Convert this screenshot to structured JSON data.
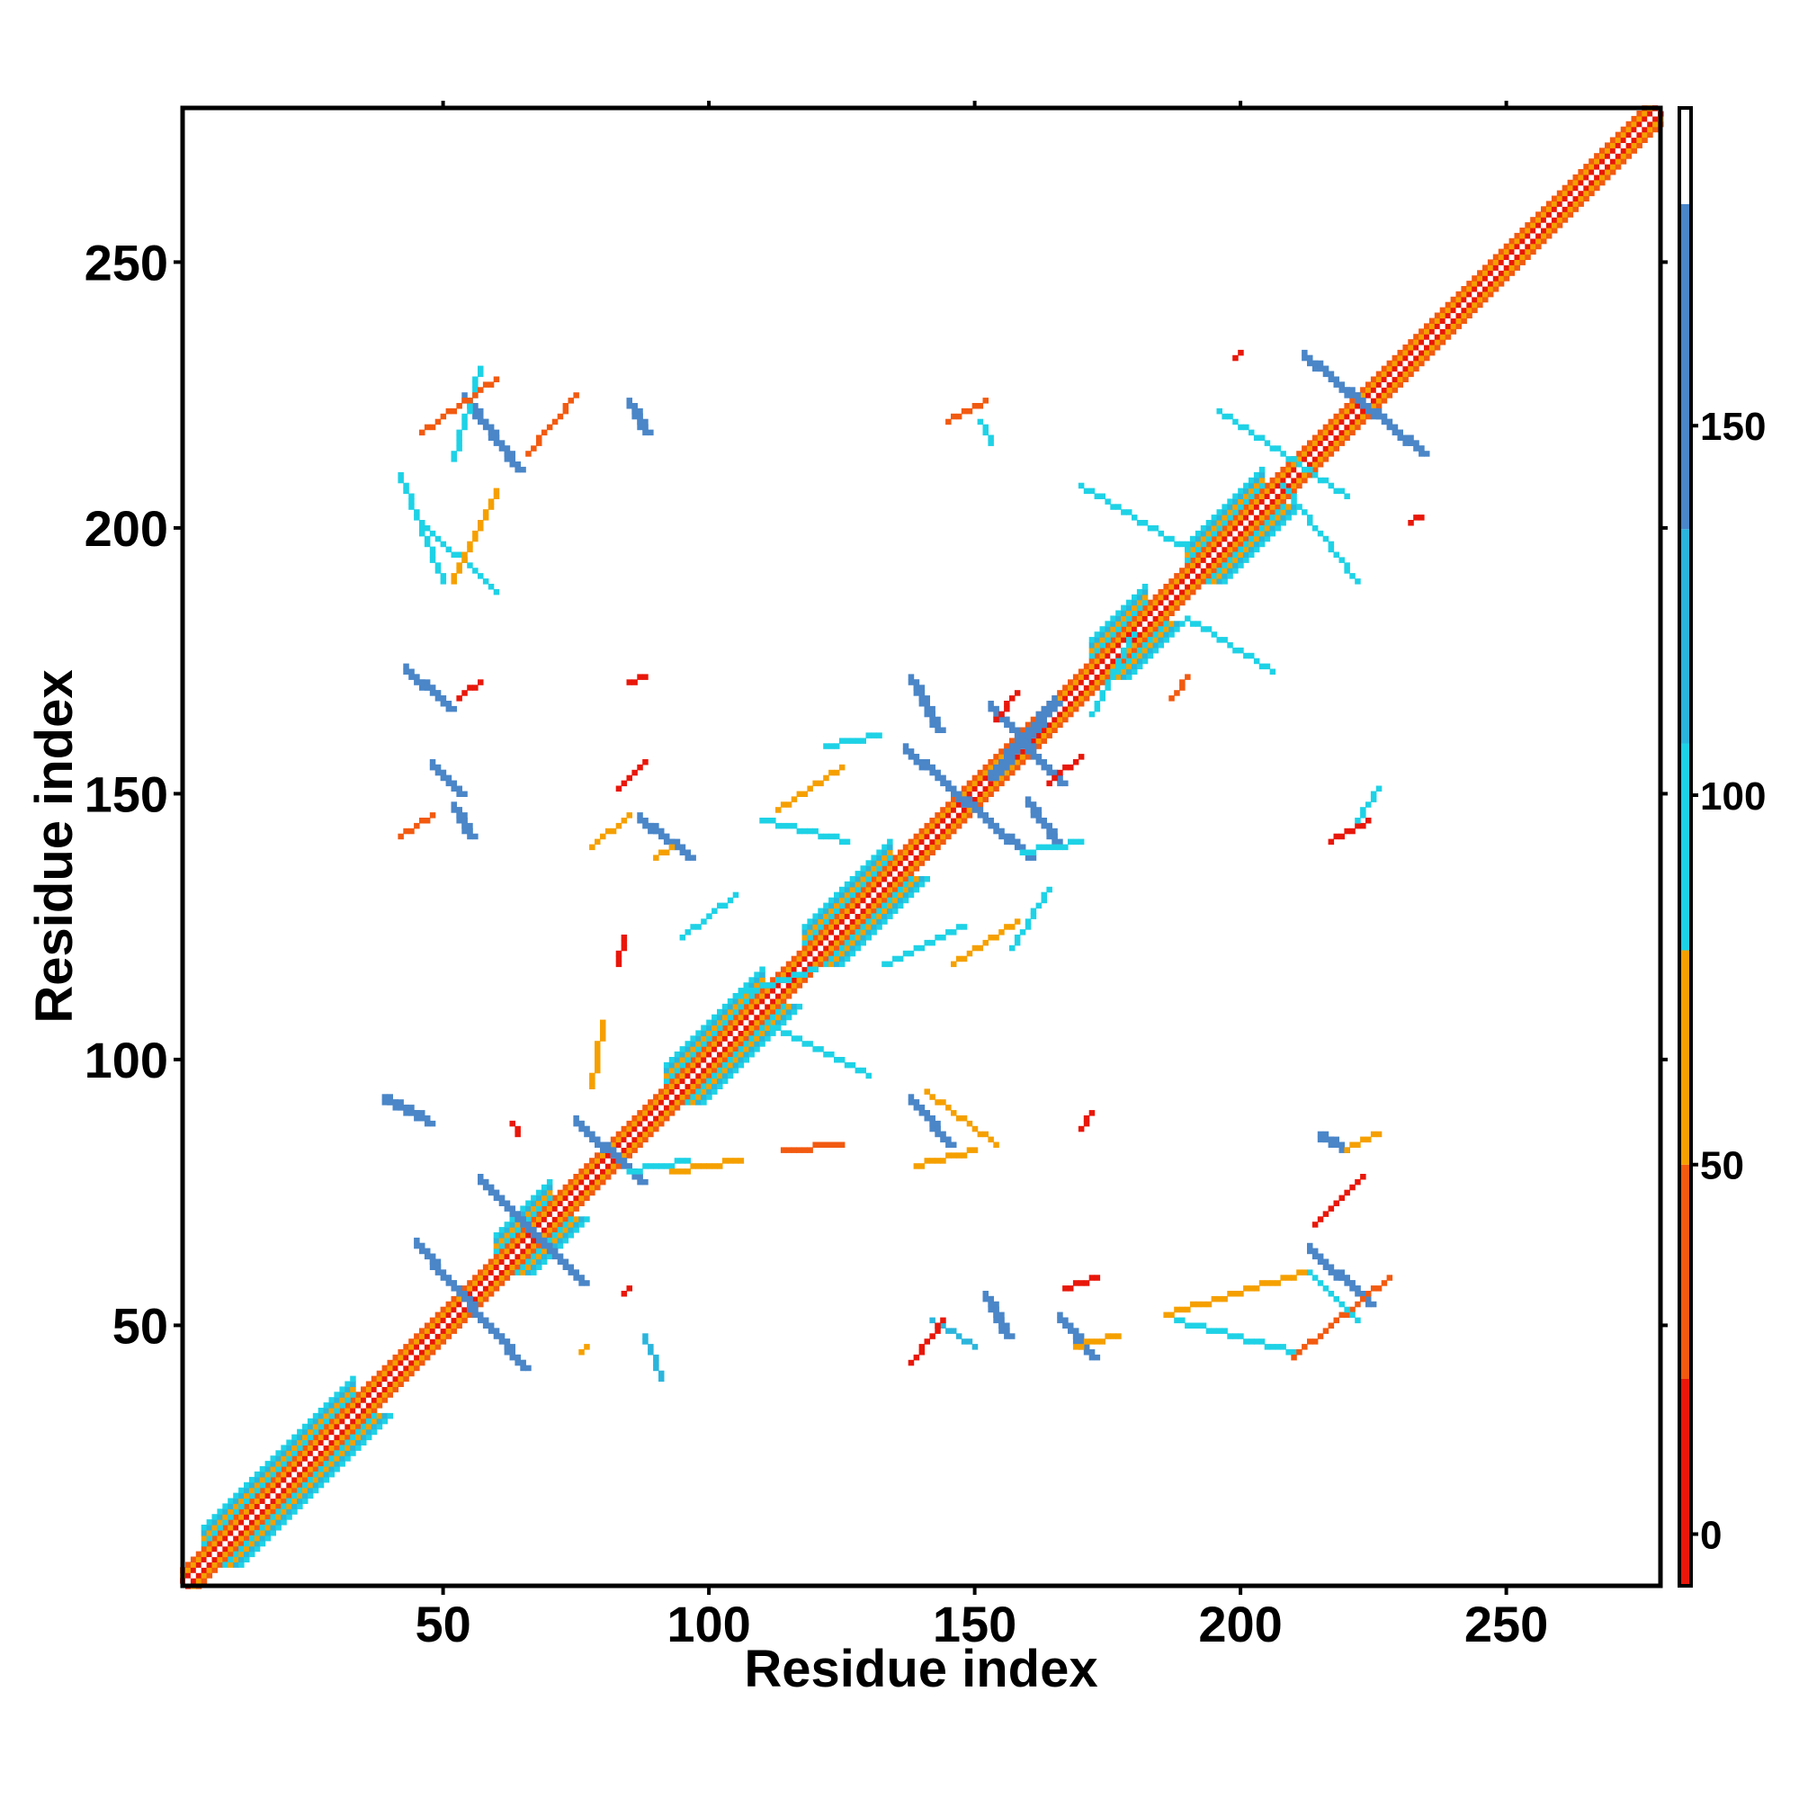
{
  "chart_data": {
    "type": "heatmap",
    "title": "",
    "xlabel": "Residue index",
    "ylabel": "Residue index",
    "xlim": [
      1,
      279
    ],
    "ylim": [
      1,
      279
    ],
    "x_ticks": [
      50,
      100,
      150,
      200,
      250
    ],
    "y_ticks": [
      50,
      100,
      150,
      200,
      250
    ],
    "colorbar": {
      "ticks": [
        0,
        50,
        100,
        150
      ],
      "range": [
        -7,
        193
      ],
      "bands": [
        {
          "from": -7,
          "to": 21,
          "color": "#e8170a"
        },
        {
          "from": 21,
          "to": 50,
          "color": "#f25a10"
        },
        {
          "from": 50,
          "to": 79,
          "color": "#f5a000"
        },
        {
          "from": 79,
          "to": 107,
          "color": "#1ed2e6"
        },
        {
          "from": 107,
          "to": 136,
          "color": "#2bb5dc"
        },
        {
          "from": 136,
          "to": 180,
          "color": "#4a86c8"
        },
        {
          "from": 180,
          "to": 193,
          "color": "#ffffff"
        }
      ]
    },
    "colors": {
      "red": "#e8170a",
      "orange_red": "#f25a10",
      "orange": "#f5a000",
      "cyan": "#1ed2e6",
      "sky": "#2bb5dc",
      "steel_blue": "#4a86c8"
    },
    "diagonal": {
      "from": 1,
      "to": 279
    },
    "helices": [
      [
        5,
        33
      ],
      [
        60,
        70
      ],
      [
        92,
        110
      ],
      [
        118,
        134
      ],
      [
        172,
        182
      ],
      [
        190,
        204
      ]
    ],
    "contact_segments": [
      {
        "x": [
          45,
          65
        ],
        "y": [
          65,
          42
        ],
        "color": "steel_blue"
      },
      {
        "x": [
          57,
          76
        ],
        "y": [
          77,
          58
        ],
        "color": "steel_blue"
      },
      {
        "x": [
          75,
          87
        ],
        "y": [
          88,
          77
        ],
        "color": "steel_blue"
      },
      {
        "x": [
          138,
          145
        ],
        "y": [
          92,
          84
        ],
        "color": "steel_blue"
      },
      {
        "x": [
          137,
          160
        ],
        "y": [
          158,
          138
        ],
        "color": "steel_blue"
      },
      {
        "x": [
          153,
          166
        ],
        "y": [
          166,
          152
        ],
        "color": "steel_blue"
      },
      {
        "x": [
          212,
          234
        ],
        "y": [
          232,
          214
        ],
        "color": "steel_blue"
      },
      {
        "x": [
          213,
          224
        ],
        "y": [
          64,
          54
        ],
        "color": "steel_blue"
      },
      {
        "x": [
          166,
          172
        ],
        "y": [
          51,
          44
        ],
        "color": "steel_blue"
      },
      {
        "x": [
          142,
          150
        ],
        "y": [
          51,
          46
        ],
        "color": "sky"
      },
      {
        "x": [
          87,
          96
        ],
        "y": [
          145,
          138
        ],
        "color": "steel_blue"
      },
      {
        "x": [
          54,
          64
        ],
        "y": [
          224,
          211
        ],
        "color": "steel_blue"
      },
      {
        "x": [
          43,
          51
        ],
        "y": [
          173,
          166
        ],
        "color": "steel_blue"
      },
      {
        "x": [
          39,
          47
        ],
        "y": [
          92,
          88
        ],
        "color": "steel_blue"
      },
      {
        "x": [
          88,
          91
        ],
        "y": [
          48,
          40
        ],
        "color": "sky"
      },
      {
        "x": [
          152,
          156
        ],
        "y": [
          55,
          48
        ],
        "color": "steel_blue"
      },
      {
        "x": [
          48,
          53
        ],
        "y": [
          155,
          150
        ],
        "color": "steel_blue"
      },
      {
        "x": [
          52,
          55
        ],
        "y": [
          147,
          142
        ],
        "color": "steel_blue"
      },
      {
        "x": [
          215,
          219
        ],
        "y": [
          85,
          83
        ],
        "color": "steel_blue"
      },
      {
        "x": [
          153,
          165
        ],
        "y": [
          153,
          167
        ],
        "color": "steel_blue"
      },
      {
        "x": [
          138,
          143
        ],
        "y": [
          171,
          162
        ],
        "color": "steel_blue"
      },
      {
        "x": [
          85,
          88
        ],
        "y": [
          223,
          218
        ],
        "color": "steel_blue"
      },
      {
        "x": [
          160,
          165
        ],
        "y": [
          148,
          141
        ],
        "color": "steel_blue"
      },
      {
        "x": [
          46,
          60
        ],
        "y": [
          201,
          188
        ],
        "color": "cyan"
      },
      {
        "x": [
          42,
          50
        ],
        "y": [
          210,
          190
        ],
        "color": "cyan"
      },
      {
        "x": [
          57,
          52
        ],
        "y": [
          230,
          213
        ],
        "color": "cyan"
      },
      {
        "x": [
          66,
          75
        ],
        "y": [
          214,
          225
        ],
        "color": "orange_red"
      },
      {
        "x": [
          46,
          60
        ],
        "y": [
          218,
          228
        ],
        "color": "orange_red"
      },
      {
        "x": [
          52,
          60
        ],
        "y": [
          190,
          207
        ],
        "color": "orange"
      },
      {
        "x": [
          42,
          48
        ],
        "y": [
          142,
          146
        ],
        "color": "orange_red"
      },
      {
        "x": [
          53,
          57
        ],
        "y": [
          168,
          171
        ],
        "color": "red"
      },
      {
        "x": [
          78,
          85
        ],
        "y": [
          140,
          146
        ],
        "color": "orange"
      },
      {
        "x": [
          90,
          93
        ],
        "y": [
          138,
          140
        ],
        "color": "orange"
      },
      {
        "x": [
          83,
          88
        ],
        "y": [
          151,
          156
        ],
        "color": "red"
      },
      {
        "x": [
          85,
          88
        ],
        "y": [
          171,
          172
        ],
        "color": "red"
      },
      {
        "x": [
          83,
          84
        ],
        "y": [
          118,
          123
        ],
        "color": "red"
      },
      {
        "x": [
          78,
          80
        ],
        "y": [
          95,
          107
        ],
        "color": "orange"
      },
      {
        "x": [
          85,
          96
        ],
        "y": [
          79,
          81
        ],
        "color": "cyan"
      },
      {
        "x": [
          93,
          106
        ],
        "y": [
          79,
          81
        ],
        "color": "orange"
      },
      {
        "x": [
          95,
          105
        ],
        "y": [
          123,
          131
        ],
        "color": "cyan"
      },
      {
        "x": [
          105,
          120
        ],
        "y": [
          112,
          117
        ],
        "color": "cyan"
      },
      {
        "x": [
          111,
          130
        ],
        "y": [
          107,
          97
        ],
        "color": "cyan"
      },
      {
        "x": [
          114,
          125
        ],
        "y": [
          83,
          84
        ],
        "color": "orange_red"
      },
      {
        "x": [
          113,
          125
        ],
        "y": [
          147,
          155
        ],
        "color": "orange"
      },
      {
        "x": [
          110,
          126
        ],
        "y": [
          145,
          141
        ],
        "color": "cyan"
      },
      {
        "x": [
          122,
          132
        ],
        "y": [
          159,
          161
        ],
        "color": "cyan"
      },
      {
        "x": [
          133,
          148
        ],
        "y": [
          118,
          125
        ],
        "color": "cyan"
      },
      {
        "x": [
          146,
          158
        ],
        "y": [
          118,
          126
        ],
        "color": "orange"
      },
      {
        "x": [
          157,
          164
        ],
        "y": [
          121,
          132
        ],
        "color": "cyan"
      },
      {
        "x": [
          141,
          154
        ],
        "y": [
          94,
          84
        ],
        "color": "orange"
      },
      {
        "x": [
          139,
          150
        ],
        "y": [
          80,
          83
        ],
        "color": "orange"
      },
      {
        "x": [
          170,
          172
        ],
        "y": [
          87,
          90
        ],
        "color": "red"
      },
      {
        "x": [
          145,
          152
        ],
        "y": [
          220,
          224
        ],
        "color": "orange_red"
      },
      {
        "x": [
          153,
          151
        ],
        "y": [
          216,
          220
        ],
        "color": "cyan"
      },
      {
        "x": [
          154,
          158
        ],
        "y": [
          164,
          169
        ],
        "color": "red"
      },
      {
        "x": [
          159,
          170
        ],
        "y": [
          139,
          141
        ],
        "color": "cyan"
      },
      {
        "x": [
          164,
          170
        ],
        "y": [
          152,
          157
        ],
        "color": "red"
      },
      {
        "x": [
          167,
          173
        ],
        "y": [
          57,
          59
        ],
        "color": "red"
      },
      {
        "x": [
          138,
          144
        ],
        "y": [
          43,
          51
        ],
        "color": "red"
      },
      {
        "x": [
          169,
          177
        ],
        "y": [
          46,
          48
        ],
        "color": "orange"
      },
      {
        "x": [
          186,
          212
        ],
        "y": [
          52,
          60
        ],
        "color": "orange"
      },
      {
        "x": [
          188,
          210
        ],
        "y": [
          51,
          45
        ],
        "color": "cyan"
      },
      {
        "x": [
          210,
          228
        ],
        "y": [
          44,
          59
        ],
        "color": "orange_red"
      },
      {
        "x": [
          214,
          223
        ],
        "y": [
          69,
          78
        ],
        "color": "red"
      },
      {
        "x": [
          220,
          226
        ],
        "y": [
          83,
          86
        ],
        "color": "orange"
      },
      {
        "x": [
          213,
          222
        ],
        "y": [
          60,
          51
        ],
        "color": "cyan"
      },
      {
        "x": [
          217,
          224
        ],
        "y": [
          141,
          145
        ],
        "color": "red"
      },
      {
        "x": [
          222,
          226
        ],
        "y": [
          145,
          151
        ],
        "color": "cyan"
      },
      {
        "x": [
          170,
          190
        ],
        "y": [
          208,
          196
        ],
        "color": "cyan"
      },
      {
        "x": [
          172,
          180
        ],
        "y": [
          165,
          180
        ],
        "color": "cyan"
      },
      {
        "x": [
          190,
          206
        ],
        "y": [
          183,
          173
        ],
        "color": "cyan"
      },
      {
        "x": [
          187,
          190
        ],
        "y": [
          168,
          172
        ],
        "color": "orange_red"
      },
      {
        "x": [
          196,
          220
        ],
        "y": [
          222,
          206
        ],
        "color": "cyan"
      },
      {
        "x": [
          208,
          222
        ],
        "y": [
          208,
          190
        ],
        "color": "cyan"
      },
      {
        "x": [
          199,
          200
        ],
        "y": [
          232,
          233
        ],
        "color": "red"
      },
      {
        "x": [
          232,
          234
        ],
        "y": [
          201,
          202
        ],
        "color": "red"
      },
      {
        "x": [
          63,
          64
        ],
        "y": [
          88,
          86
        ],
        "color": "red"
      },
      {
        "x": [
          84,
          85
        ],
        "y": [
          56,
          57
        ],
        "color": "red"
      },
      {
        "x": [
          76,
          77
        ],
        "y": [
          45,
          46
        ],
        "color": "orange"
      }
    ]
  }
}
